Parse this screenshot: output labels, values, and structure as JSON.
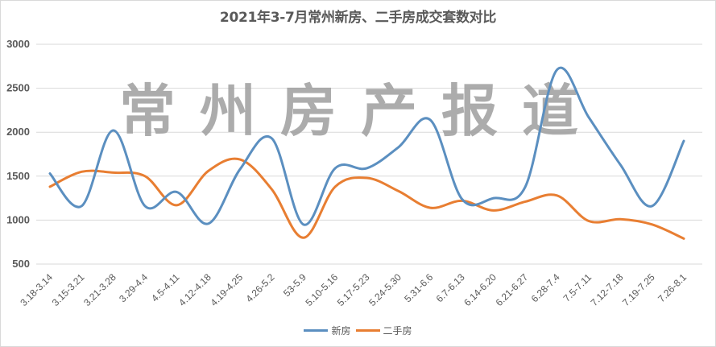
{
  "chart": {
    "title": "2021年3-7月常州新房、二手房成交套数对比",
    "watermark": "常州房产报道"
  },
  "legend": {
    "items": [
      {
        "label": "新房",
        "color": "#5b8fc0"
      },
      {
        "label": "二手房",
        "color": "#e87e32"
      }
    ]
  },
  "chart_data": {
    "type": "line",
    "title": "2021年3-7月常州新房、二手房成交套数对比",
    "xlabel": "",
    "ylabel": "",
    "ylim": [
      500,
      3000
    ],
    "yticks": [
      500,
      1000,
      1500,
      2000,
      2500,
      3000
    ],
    "grid": true,
    "smooth": true,
    "legend_position": "bottom",
    "categories": [
      "3.18-3.14",
      "3.15-3.21",
      "3.21-3.28",
      "3.29-4.4",
      "4.5-4.11",
      "4.12-4.18",
      "4.19-4.25",
      "4.26-5.2",
      "53-5.9",
      "5.10-5.16",
      "5.17-5.23",
      "5.24-5.30",
      "5.31-6.6",
      "6.7-6.13",
      "6.14-6.20",
      "6.21-6.27",
      "6.28-7.4",
      "7.5-7.11",
      "7.12-7.18",
      "7.19-7.25",
      "7.26-8.1"
    ],
    "series": [
      {
        "name": "新房",
        "color": "#5b8fc0",
        "values": [
          1530,
          1160,
          2020,
          1160,
          1320,
          960,
          1580,
          1930,
          950,
          1590,
          1590,
          1830,
          2140,
          1240,
          1250,
          1380,
          2710,
          2170,
          1630,
          1160,
          1900
        ]
      },
      {
        "name": "二手房",
        "color": "#e87e32",
        "values": [
          1380,
          1550,
          1540,
          1500,
          1170,
          1560,
          1690,
          1350,
          800,
          1380,
          1480,
          1330,
          1140,
          1220,
          1110,
          1210,
          1280,
          990,
          1010,
          950,
          790
        ]
      }
    ]
  }
}
